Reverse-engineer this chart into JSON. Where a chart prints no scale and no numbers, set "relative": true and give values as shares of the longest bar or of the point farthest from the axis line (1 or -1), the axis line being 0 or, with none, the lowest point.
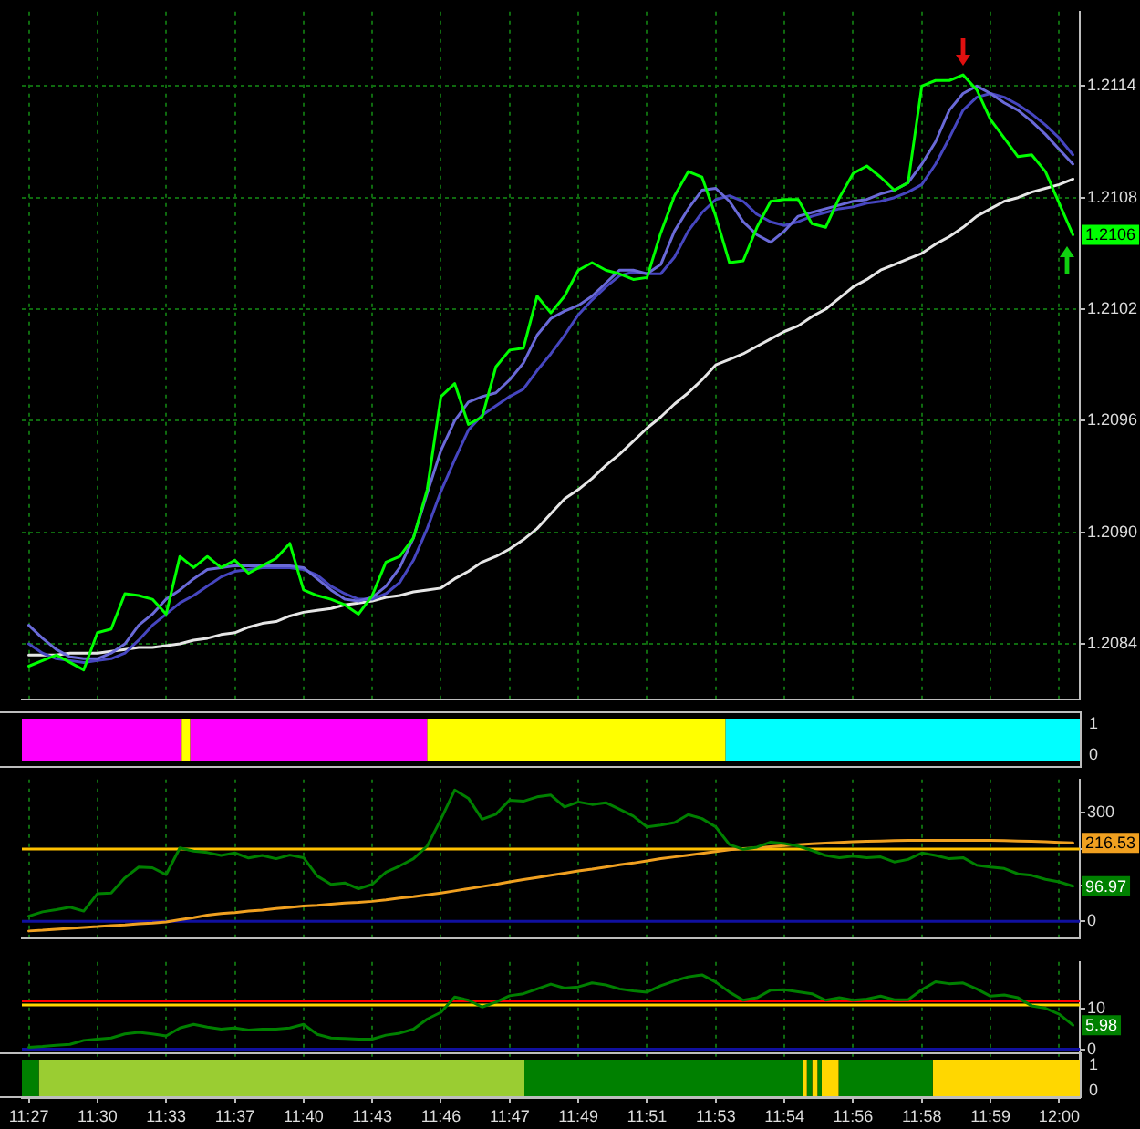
{
  "chart_data": [
    {
      "type": "line",
      "categories": [
        null,
        null,
        null,
        null,
        null,
        null,
        null,
        null,
        null,
        null,
        null,
        null,
        null,
        null,
        null,
        null,
        null,
        null,
        null,
        null,
        null,
        null,
        null,
        null,
        null,
        null,
        null,
        null,
        null,
        null,
        null,
        null,
        null,
        null,
        null,
        null,
        null,
        null,
        null,
        null,
        null,
        null,
        null,
        null,
        null,
        null,
        null,
        null,
        null,
        null,
        null,
        null,
        null,
        null,
        null,
        null,
        null,
        null,
        null,
        null,
        null,
        null,
        null,
        null,
        null,
        null,
        null,
        null,
        null,
        null,
        null,
        null,
        null,
        null,
        null,
        null,
        null
      ],
      "series": [
        {
          "color": "#00ff00",
          "values": [
            1.20828,
            1.20831,
            1.20834,
            1.2083,
            1.20826,
            1.20846,
            1.20848,
            1.20867,
            1.20866,
            1.20864,
            1.20856,
            1.20887,
            1.20881,
            1.20887,
            1.20881,
            1.20885,
            1.20878,
            1.20882,
            1.20886,
            1.20894,
            1.20869,
            1.20866,
            1.20864,
            1.20861,
            1.20856,
            1.20866,
            1.20884,
            1.20887,
            1.20897,
            1.20923,
            1.20973,
            1.2098,
            1.20958,
            1.20962,
            1.20989,
            1.20998,
            1.20999,
            1.21027,
            1.21018,
            1.21027,
            1.21041,
            1.21045,
            1.21041,
            1.21039,
            1.21036,
            1.21037,
            1.21061,
            1.21081,
            1.21094,
            1.21091,
            1.2107,
            1.21045,
            1.21046,
            1.21064,
            1.21078,
            1.21079,
            1.21079,
            1.21066,
            1.21064,
            1.2108,
            1.21093,
            1.21097,
            1.21091,
            1.21084,
            1.21088,
            1.2114,
            1.21143,
            1.21143,
            1.21146,
            1.21138,
            1.21122,
            1.21112,
            1.21102,
            1.21103,
            1.21094,
            1.21077,
            1.2106
          ],
          "value_labels": [
            null,
            null,
            null,
            null,
            null,
            null,
            null,
            null,
            null,
            null,
            null,
            null,
            null,
            null,
            null,
            null,
            null,
            null,
            null,
            null,
            null,
            null,
            null,
            null,
            null,
            null,
            null,
            null,
            null,
            null,
            null,
            null,
            null,
            null,
            null,
            null,
            null,
            null,
            null,
            null,
            null,
            null,
            null,
            null,
            null,
            null,
            null,
            null,
            null,
            null,
            null,
            null,
            null,
            null,
            null,
            null,
            null,
            null,
            null,
            null,
            null,
            null,
            null,
            null,
            null,
            null,
            null,
            null,
            null,
            null,
            null,
            null,
            null,
            null,
            null,
            null,
            "1.2106"
          ]
        },
        {
          "color": "#6a6ad8",
          "values": [
            1.2085,
            1.20843,
            1.20837,
            1.20833,
            1.20832,
            1.20832,
            1.20835,
            1.2084,
            1.2085,
            1.20856,
            1.20864,
            1.20869,
            1.20875,
            1.2088,
            1.20881,
            1.20882,
            1.20882,
            1.20882,
            1.20882,
            1.20882,
            1.20881,
            1.20875,
            1.20869,
            1.20864,
            1.20863,
            1.20865,
            1.20871,
            1.20881,
            1.20897,
            1.20921,
            1.20944,
            1.2096,
            1.2097,
            1.20973,
            1.20975,
            1.20982,
            1.20991,
            1.21006,
            1.21015,
            1.21019,
            1.21022,
            1.21027,
            1.21034,
            1.21041,
            1.21041,
            1.21039,
            1.21044,
            1.21062,
            1.21074,
            1.21084,
            1.21085,
            1.21078,
            1.21067,
            1.2106,
            1.21056,
            1.21062,
            1.2107,
            1.21072,
            1.21074,
            1.21076,
            1.21078,
            1.21079,
            1.21082,
            1.21084,
            1.21088,
            1.21098,
            1.2111,
            1.21127,
            1.21136,
            1.2114,
            1.21136,
            1.21131,
            1.21127,
            1.21121,
            1.21114,
            1.21106,
            1.21098
          ]
        },
        {
          "color": "#4646c0",
          "values": [
            1.2084,
            1.20835,
            1.20832,
            1.20831,
            1.2083,
            1.20831,
            1.20832,
            1.20835,
            1.20842,
            1.2085,
            1.20856,
            1.20862,
            1.20866,
            1.20871,
            1.20876,
            1.20879,
            1.2088,
            1.20881,
            1.20881,
            1.20881,
            1.2088,
            1.20877,
            1.20871,
            1.20867,
            1.20864,
            1.20864,
            1.20867,
            1.20873,
            1.20885,
            1.20902,
            1.20922,
            1.20939,
            1.20955,
            1.20963,
            1.20968,
            1.20973,
            1.20977,
            1.20987,
            1.20996,
            1.21006,
            1.21017,
            1.21025,
            1.21032,
            1.21038,
            1.2104,
            1.21039,
            1.21039,
            1.21048,
            1.21062,
            1.21072,
            1.21079,
            1.21081,
            1.21078,
            1.21071,
            1.21067,
            1.21065,
            1.21067,
            1.2107,
            1.21072,
            1.21074,
            1.21075,
            1.21077,
            1.21078,
            1.2108,
            1.21083,
            1.21087,
            1.21098,
            1.21112,
            1.21127,
            1.21134,
            1.21136,
            1.21134,
            1.2113,
            1.21125,
            1.21119,
            1.21112,
            1.21103
          ]
        },
        {
          "color": "#e6e6e6",
          "values": [
            1.20834,
            1.20834,
            1.20834,
            1.20835,
            1.20835,
            1.20835,
            1.20836,
            1.20837,
            1.20838,
            1.20838,
            1.20839,
            1.2084,
            1.20842,
            1.20843,
            1.20845,
            1.20846,
            1.20849,
            1.20851,
            1.20852,
            1.20855,
            1.20857,
            1.20858,
            1.20859,
            1.20861,
            1.20862,
            1.20863,
            1.20865,
            1.20866,
            1.20868,
            1.20869,
            1.2087,
            1.20875,
            1.20879,
            1.20884,
            1.20887,
            1.20891,
            1.20896,
            1.20902,
            1.2091,
            1.20918,
            1.20923,
            1.20929,
            1.20936,
            1.20942,
            1.20949,
            1.20956,
            1.20962,
            1.20969,
            1.20975,
            1.20982,
            1.2099,
            1.20993,
            1.20996,
            1.21,
            1.21004,
            1.21008,
            1.21011,
            1.21016,
            1.2102,
            1.21026,
            1.21032,
            1.21036,
            1.21041,
            1.21044,
            1.21047,
            1.2105,
            1.21055,
            1.21059,
            1.21064,
            1.2107,
            1.21074,
            1.21078,
            1.2108,
            1.21083,
            1.21085,
            1.21087,
            1.2109
          ]
        }
      ],
      "ylim": [
        1.2081,
        1.2118
      ],
      "yticks": [
        1.2084,
        {
          "value": 1.209,
          "label": "1.2090"
        },
        1.2096,
        1.2102,
        1.2108,
        1.2114
      ],
      "grid": true,
      "tick_labels": "y"
    },
    {
      "type": "bar",
      "orientation": "horizontal",
      "stacked": true,
      "relative": true,
      "categories": [
        null
      ],
      "series": [
        {
          "color": "#ff00ff",
          "values": [
            0.151
          ]
        },
        {
          "color": "#ffff00",
          "values": [
            0.008
          ]
        },
        {
          "color": "#ff00ff",
          "values": [
            0.224
          ]
        },
        {
          "color": "#ffff00",
          "values": [
            0.282
          ]
        },
        {
          "color": "#00ffff",
          "values": [
            0.335
          ]
        }
      ],
      "annotations": [
        "1",
        "0"
      ]
    },
    {
      "type": "line",
      "categories": [
        null,
        null,
        null,
        null,
        null,
        null,
        null,
        null,
        null,
        null,
        null,
        null,
        null,
        null,
        null,
        null,
        null,
        null,
        null,
        null,
        null,
        null,
        null,
        null,
        null,
        null,
        null,
        null,
        null,
        null,
        null,
        null,
        null,
        null,
        null,
        null,
        null,
        null,
        null,
        null,
        null,
        null,
        null,
        null,
        null,
        null,
        null,
        null,
        null,
        null,
        null,
        null,
        null,
        null,
        null,
        null,
        null,
        null,
        null,
        null,
        null,
        null,
        null,
        null,
        null,
        null,
        null,
        null,
        null,
        null,
        null,
        null,
        null,
        null,
        null,
        null,
        null
      ],
      "series": [
        {
          "color": "#008000",
          "values": [
            14,
            26,
            32,
            39,
            28,
            76,
            78,
            120,
            150,
            148,
            129,
            203,
            194,
            190,
            182,
            189,
            175,
            182,
            173,
            183,
            176,
            125,
            102,
            106,
            90,
            102,
            136,
            153,
            173,
            208,
            282,
            363,
            340,
            282,
            296,
            335,
            332,
            344,
            349,
            316,
            330,
            323,
            328,
            310,
            291,
            261,
            266,
            273,
            295,
            284,
            261,
            212,
            199,
            205,
            219,
            215,
            208,
            196,
            182,
            176,
            180,
            176,
            178,
            164,
            171,
            189,
            182,
            173,
            176,
            155,
            150,
            146,
            131,
            127,
            116,
            109,
            96.97
          ],
          "value_labels": [
            null,
            null,
            null,
            null,
            null,
            null,
            null,
            null,
            null,
            null,
            null,
            null,
            null,
            null,
            null,
            null,
            null,
            null,
            null,
            null,
            null,
            null,
            null,
            null,
            null,
            null,
            null,
            null,
            null,
            null,
            null,
            null,
            null,
            null,
            null,
            null,
            null,
            null,
            null,
            null,
            null,
            null,
            null,
            null,
            null,
            null,
            null,
            null,
            null,
            null,
            null,
            null,
            null,
            null,
            null,
            null,
            null,
            null,
            null,
            null,
            null,
            null,
            null,
            null,
            null,
            null,
            null,
            null,
            null,
            null,
            null,
            null,
            null,
            null,
            null,
            null,
            "96.97"
          ]
        },
        {
          "color": "#f0a020",
          "values": [
            -27,
            -25,
            -22,
            -20,
            -17,
            -15,
            -12,
            -10,
            -7,
            -5,
            -2,
            4,
            10,
            17,
            21,
            24,
            28,
            31,
            35,
            38,
            42,
            44,
            47,
            50,
            52,
            55,
            59,
            64,
            68,
            73,
            78,
            84,
            90,
            96,
            102,
            109,
            115,
            121,
            127,
            133,
            139,
            144,
            150,
            156,
            161,
            167,
            173,
            178,
            183,
            188,
            193,
            198,
            201,
            203,
            206,
            209,
            212,
            214,
            216,
            218,
            220,
            221,
            222,
            223,
            224,
            224,
            224,
            224,
            224,
            224,
            224,
            223,
            222,
            221,
            220,
            218,
            216.53
          ],
          "value_labels": [
            null,
            null,
            null,
            null,
            null,
            null,
            null,
            null,
            null,
            null,
            null,
            null,
            null,
            null,
            null,
            null,
            null,
            null,
            null,
            null,
            null,
            null,
            null,
            null,
            null,
            null,
            null,
            null,
            null,
            null,
            null,
            null,
            null,
            null,
            null,
            null,
            null,
            null,
            null,
            null,
            null,
            null,
            null,
            null,
            null,
            null,
            null,
            null,
            null,
            null,
            null,
            null,
            null,
            null,
            null,
            null,
            null,
            null,
            null,
            null,
            null,
            null,
            null,
            null,
            null,
            null,
            null,
            null,
            null,
            null,
            null,
            null,
            null,
            null,
            null,
            null,
            "216.53"
          ]
        }
      ],
      "ref_lines": [
        {
          "axis": "y",
          "value": 200,
          "color": "#ffc000"
        },
        {
          "axis": "y",
          "value": 0,
          "color": "#1010a0"
        }
      ],
      "ylim": [
        -48,
        392
      ],
      "yticks": [
        0,
        {
          "value": 100,
          "label": null
        },
        {
          "value": 200,
          "label": null
        },
        300
      ],
      "grid": "x",
      "tick_labels": "y"
    },
    {
      "type": "line",
      "categories": [
        "11:27",
        null,
        null,
        null,
        null,
        "11:30",
        null,
        null,
        null,
        null,
        "11:33",
        null,
        null,
        null,
        null,
        "11:37",
        null,
        null,
        null,
        null,
        "11:40",
        null,
        null,
        null,
        null,
        "11:43",
        null,
        null,
        null,
        null,
        "11:46",
        null,
        null,
        null,
        null,
        "11:47",
        null,
        null,
        null,
        null,
        "11:49",
        null,
        null,
        null,
        null,
        "11:51",
        null,
        null,
        null,
        null,
        "11:53",
        null,
        null,
        null,
        null,
        "11:54",
        null,
        null,
        null,
        null,
        "11:56",
        null,
        null,
        null,
        null,
        "11:58",
        null,
        null,
        null,
        null,
        "11:59",
        null,
        null,
        null,
        null,
        "12:00",
        null
      ],
      "series": [
        {
          "color": "#008000",
          "values": [
            0.5,
            0.7,
            1.0,
            1.2,
            2.2,
            2.5,
            2.8,
            3.8,
            4.2,
            3.8,
            3.3,
            5.3,
            6.2,
            5.5,
            5.0,
            5.3,
            4.8,
            5.0,
            5.0,
            5.3,
            6.2,
            3.7,
            2.8,
            2.7,
            2.5,
            2.5,
            3.5,
            4.0,
            5.0,
            7.5,
            9.2,
            13.0,
            12.2,
            10.5,
            11.7,
            13.3,
            13.8,
            15.0,
            16.2,
            15.2,
            15.5,
            16.5,
            16.0,
            15.0,
            14.5,
            14.2,
            15.8,
            17.0,
            18.0,
            18.5,
            16.7,
            14.2,
            12.2,
            12.8,
            14.7,
            14.8,
            14.3,
            13.8,
            12.2,
            12.8,
            12.2,
            12.5,
            13.2,
            12.3,
            12.3,
            14.8,
            16.8,
            16.3,
            16.5,
            15.0,
            13.2,
            13.5,
            12.8,
            10.8,
            10.2,
            8.7,
            5.98
          ],
          "value_labels": [
            null,
            null,
            null,
            null,
            null,
            null,
            null,
            null,
            null,
            null,
            null,
            null,
            null,
            null,
            null,
            null,
            null,
            null,
            null,
            null,
            null,
            null,
            null,
            null,
            null,
            null,
            null,
            null,
            null,
            null,
            null,
            null,
            null,
            null,
            null,
            null,
            null,
            null,
            null,
            null,
            null,
            null,
            null,
            null,
            null,
            null,
            null,
            null,
            null,
            null,
            null,
            null,
            null,
            null,
            null,
            null,
            null,
            null,
            null,
            null,
            null,
            null,
            null,
            null,
            null,
            null,
            null,
            null,
            null,
            null,
            null,
            null,
            null,
            null,
            null,
            null,
            "5.98"
          ]
        }
      ],
      "ref_lines": [
        {
          "axis": "y",
          "value": 12,
          "color": "#ff0000"
        },
        {
          "axis": "y",
          "value": 11,
          "color": "#ffd700"
        },
        {
          "axis": "y",
          "value": 0,
          "color": "#1010a0"
        }
      ],
      "ylim": [
        -12.1,
        21.7
      ],
      "yticks": [
        0,
        10
      ],
      "grid": "x"
    },
    {
      "type": "bar",
      "orientation": "horizontal",
      "stacked": true,
      "relative": true,
      "categories": [
        null
      ],
      "series": [
        {
          "color": "#008000",
          "values": [
            0.016
          ]
        },
        {
          "color": "#9acd32",
          "values": [
            0.459
          ]
        },
        {
          "color": "#008000",
          "values": [
            0.263
          ]
        },
        {
          "color": "#ffd700",
          "values": [
            0.004
          ]
        },
        {
          "color": "#008000",
          "values": [
            0.005
          ]
        },
        {
          "color": "#ffd700",
          "values": [
            0.005
          ]
        },
        {
          "color": "#008000",
          "values": [
            0.004
          ]
        },
        {
          "color": "#ffd700",
          "values": [
            0.016
          ]
        },
        {
          "color": "#008000",
          "values": [
            0.089
          ]
        },
        {
          "color": "#ffd700",
          "values": [
            0.139
          ]
        }
      ],
      "annotations": [
        "1",
        "0"
      ]
    }
  ]
}
